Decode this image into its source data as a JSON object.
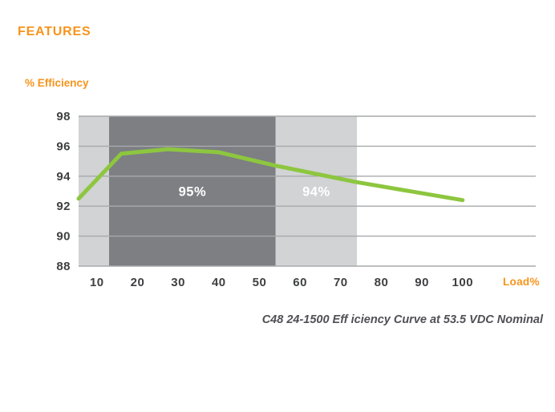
{
  "header": {
    "title": "FEATURES"
  },
  "chart": {
    "y_axis_title": "% Efficiency",
    "x_axis_title": "Load%",
    "caption": "C48 24-1500 Eff iciency Curve at 53.5 VDC Nominal"
  },
  "colors": {
    "accent_orange": "#f7941d",
    "line_green": "#8dc63f",
    "band_dark": "#7d7f83",
    "band_light": "#d1d3d4",
    "grid": "#a7a9ac",
    "tick_text": "#3f4042",
    "caption_text": "#4f5054",
    "band_label_text": "#ffffff"
  },
  "chart_data": {
    "type": "line",
    "title": "C48 24-1500 Eff iciency Curve at 53.5 VDC Nominal",
    "xlabel": "Load%",
    "ylabel": "% Efficiency",
    "xlim": [
      5.5,
      118
    ],
    "ylim": [
      88,
      98
    ],
    "x_ticks": [
      10,
      20,
      30,
      40,
      50,
      60,
      70,
      80,
      90,
      100
    ],
    "y_ticks": [
      88,
      90,
      92,
      94,
      96,
      98
    ],
    "grid": "horizontal",
    "legend": "none",
    "series": [
      {
        "name": "Efficiency",
        "points": [
          [
            5.5,
            92.5
          ],
          [
            16,
            95.5
          ],
          [
            27.5,
            95.8
          ],
          [
            40,
            95.6
          ],
          [
            54,
            94.7
          ],
          [
            74,
            93.6
          ],
          [
            100,
            92.4
          ]
        ]
      }
    ],
    "bands": [
      {
        "x_from": 5.5,
        "x_to": 13,
        "shade": "light",
        "label": ""
      },
      {
        "x_from": 13,
        "x_to": 54,
        "shade": "dark",
        "label": "95%"
      },
      {
        "x_from": 54,
        "x_to": 74,
        "shade": "light",
        "label": "94%"
      }
    ]
  }
}
